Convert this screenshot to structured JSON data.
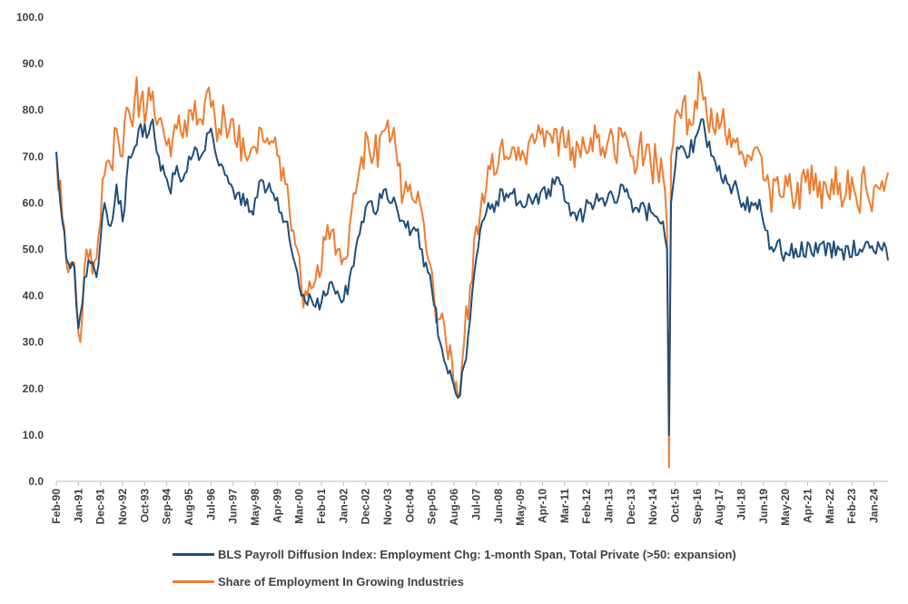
{
  "colors": {
    "diffusion": "#1f4e79",
    "share": "#ed7d31",
    "axis": "#bfbfbf",
    "text": "#404040"
  },
  "chart_data": {
    "type": "line",
    "title": "",
    "xlabel": "",
    "ylabel": "",
    "ylim": [
      0,
      100
    ],
    "yticks": [
      "0.0",
      "10.0",
      "20.0",
      "30.0",
      "40.0",
      "50.0",
      "60.0",
      "70.0",
      "80.0",
      "90.0",
      "100.0"
    ],
    "x_start": "Feb-90",
    "x_end": "Aug-24",
    "xtick_labels": [
      "Feb-90",
      "Jan-91",
      "Dec-91",
      "Nov-92",
      "Oct-93",
      "Sep-94",
      "Aug-95",
      "Jul-96",
      "Jun-97",
      "May-98",
      "Apr-99",
      "Mar-00",
      "Feb-01",
      "Jan-02",
      "Dec-02",
      "Nov-03",
      "Oct-04",
      "Sep-05",
      "Aug-06",
      "Jul-07",
      "Jun-08",
      "May-09",
      "Apr-10",
      "Mar-11",
      "Feb-12",
      "Jan-13",
      "Dec-13",
      "Nov-14",
      "Oct-15",
      "Sep-16",
      "Aug-17",
      "Jul-18",
      "Jun-19",
      "May-20",
      "Apr-21",
      "Mar-22",
      "Feb-23",
      "Jan-24"
    ],
    "legend_position": "bottom",
    "series": [
      {
        "name": "BLS Payroll Diffusion Index: Employment Chg: 1-month Span, Total Private (>50: expansion)",
        "color": "#1f4e79",
        "anchors": [
          [
            0,
            71
          ],
          [
            3,
            56
          ],
          [
            6,
            47
          ],
          [
            9,
            46
          ],
          [
            11,
            33
          ],
          [
            12,
            36
          ],
          [
            14,
            44
          ],
          [
            17,
            47
          ],
          [
            20,
            44
          ],
          [
            22,
            52
          ],
          [
            24,
            60
          ],
          [
            27,
            55
          ],
          [
            30,
            64
          ],
          [
            33,
            56
          ],
          [
            36,
            70
          ],
          [
            39,
            72
          ],
          [
            42,
            77
          ],
          [
            45,
            74
          ],
          [
            48,
            78
          ],
          [
            51,
            70
          ],
          [
            54,
            66
          ],
          [
            57,
            62
          ],
          [
            60,
            68
          ],
          [
            63,
            65
          ],
          [
            66,
            70
          ],
          [
            69,
            72
          ],
          [
            72,
            70
          ],
          [
            75,
            75
          ],
          [
            78,
            74
          ],
          [
            81,
            68
          ],
          [
            84,
            66
          ],
          [
            87,
            64
          ],
          [
            90,
            62
          ],
          [
            93,
            62
          ],
          [
            96,
            58
          ],
          [
            99,
            61
          ],
          [
            102,
            65
          ],
          [
            105,
            63
          ],
          [
            108,
            62
          ],
          [
            111,
            58
          ],
          [
            114,
            56
          ],
          [
            117,
            50
          ],
          [
            120,
            45
          ],
          [
            122,
            40
          ],
          [
            125,
            38
          ],
          [
            128,
            38
          ],
          [
            131,
            37
          ],
          [
            134,
            40
          ],
          [
            137,
            43
          ],
          [
            140,
            41
          ],
          [
            143,
            39
          ],
          [
            146,
            44
          ],
          [
            149,
            50
          ],
          [
            152,
            56
          ],
          [
            155,
            60
          ],
          [
            158,
            58
          ],
          [
            161,
            62
          ],
          [
            164,
            63
          ],
          [
            167,
            60
          ],
          [
            170,
            58
          ],
          [
            173,
            56
          ],
          [
            176,
            53
          ],
          [
            179,
            54
          ],
          [
            182,
            50
          ],
          [
            185,
            45
          ],
          [
            188,
            38
          ],
          [
            191,
            30
          ],
          [
            194,
            25
          ],
          [
            197,
            22
          ],
          [
            200,
            18
          ],
          [
            203,
            25
          ],
          [
            206,
            35
          ],
          [
            209,
            48
          ],
          [
            212,
            56
          ],
          [
            215,
            60
          ],
          [
            218,
            58
          ],
          [
            221,
            63
          ],
          [
            224,
            62
          ],
          [
            227,
            62
          ],
          [
            230,
            60
          ],
          [
            233,
            59
          ],
          [
            236,
            61
          ],
          [
            239,
            62
          ],
          [
            242,
            63
          ],
          [
            245,
            63
          ],
          [
            248,
            64
          ],
          [
            251,
            64
          ],
          [
            254,
            60
          ],
          [
            257,
            58
          ],
          [
            260,
            58
          ],
          [
            263,
            58
          ],
          [
            266,
            60
          ],
          [
            269,
            62
          ],
          [
            272,
            61
          ],
          [
            275,
            62
          ],
          [
            278,
            60
          ],
          [
            281,
            64
          ],
          [
            284,
            63
          ],
          [
            287,
            58
          ],
          [
            290,
            58
          ],
          [
            293,
            59
          ],
          [
            296,
            58
          ],
          [
            299,
            57
          ],
          [
            302,
            56
          ],
          [
            304,
            50
          ],
          [
            305,
            10
          ],
          [
            306,
            60
          ],
          [
            309,
            72
          ],
          [
            312,
            72
          ],
          [
            315,
            70
          ],
          [
            318,
            74
          ],
          [
            321,
            78
          ],
          [
            324,
            72
          ],
          [
            327,
            70
          ],
          [
            330,
            68
          ],
          [
            333,
            66
          ],
          [
            336,
            62
          ],
          [
            339,
            63
          ],
          [
            342,
            60
          ],
          [
            345,
            58
          ],
          [
            348,
            60
          ],
          [
            351,
            58
          ],
          [
            354,
            54
          ],
          [
            355,
            50
          ]
        ],
        "wiggle": 2.6
      },
      {
        "name": "Share of Employment In Growing Industries",
        "color": "#ed7d31",
        "anchors": [
          [
            0,
            71
          ],
          [
            3,
            57
          ],
          [
            6,
            45
          ],
          [
            9,
            47
          ],
          [
            11,
            32
          ],
          [
            12,
            30
          ],
          [
            14,
            46
          ],
          [
            17,
            50
          ],
          [
            20,
            48
          ],
          [
            22,
            56
          ],
          [
            24,
            66
          ],
          [
            27,
            68
          ],
          [
            30,
            76
          ],
          [
            33,
            70
          ],
          [
            36,
            80
          ],
          [
            39,
            82
          ],
          [
            42,
            82
          ],
          [
            45,
            80
          ],
          [
            48,
            84
          ],
          [
            51,
            78
          ],
          [
            54,
            74
          ],
          [
            57,
            70
          ],
          [
            60,
            76
          ],
          [
            63,
            74
          ],
          [
            66,
            80
          ],
          [
            69,
            82
          ],
          [
            72,
            78
          ],
          [
            75,
            84
          ],
          [
            78,
            82
          ],
          [
            81,
            76
          ],
          [
            84,
            78
          ],
          [
            87,
            78
          ],
          [
            90,
            72
          ],
          [
            93,
            74
          ],
          [
            96,
            70
          ],
          [
            99,
            72
          ],
          [
            102,
            76
          ],
          [
            105,
            74
          ],
          [
            108,
            73
          ],
          [
            111,
            70
          ],
          [
            114,
            64
          ],
          [
            117,
            54
          ],
          [
            120,
            50
          ],
          [
            122,
            42
          ],
          [
            125,
            40
          ],
          [
            128,
            42
          ],
          [
            131,
            44
          ],
          [
            134,
            52
          ],
          [
            137,
            54
          ],
          [
            140,
            50
          ],
          [
            143,
            48
          ],
          [
            146,
            55
          ],
          [
            149,
            62
          ],
          [
            152,
            70
          ],
          [
            155,
            74
          ],
          [
            158,
            70
          ],
          [
            161,
            74
          ],
          [
            164,
            76
          ],
          [
            167,
            74
          ],
          [
            170,
            68
          ],
          [
            173,
            62
          ],
          [
            176,
            64
          ],
          [
            179,
            60
          ],
          [
            182,
            58
          ],
          [
            185,
            48
          ],
          [
            188,
            40
          ],
          [
            191,
            35
          ],
          [
            194,
            30
          ],
          [
            197,
            26
          ],
          [
            200,
            18
          ],
          [
            203,
            30
          ],
          [
            206,
            42
          ],
          [
            209,
            55
          ],
          [
            212,
            62
          ],
          [
            215,
            68
          ],
          [
            218,
            66
          ],
          [
            221,
            72
          ],
          [
            224,
            70
          ],
          [
            227,
            72
          ],
          [
            230,
            72
          ],
          [
            233,
            70
          ],
          [
            236,
            74
          ],
          [
            239,
            74
          ],
          [
            242,
            76
          ],
          [
            245,
            75
          ],
          [
            248,
            76
          ],
          [
            251,
            75
          ],
          [
            254,
            72
          ],
          [
            257,
            72
          ],
          [
            260,
            72
          ],
          [
            263,
            72
          ],
          [
            266,
            74
          ],
          [
            269,
            74
          ],
          [
            272,
            72
          ],
          [
            275,
            74
          ],
          [
            278,
            70
          ],
          [
            281,
            76
          ],
          [
            284,
            74
          ],
          [
            287,
            70
          ],
          [
            290,
            72
          ],
          [
            293,
            70
          ],
          [
            296,
            68
          ],
          [
            299,
            68
          ],
          [
            302,
            66
          ],
          [
            304,
            55
          ],
          [
            305,
            3
          ],
          [
            306,
            70
          ],
          [
            309,
            80
          ],
          [
            312,
            82
          ],
          [
            315,
            78
          ],
          [
            318,
            82
          ],
          [
            321,
            86
          ],
          [
            324,
            78
          ],
          [
            327,
            76
          ],
          [
            330,
            76
          ],
          [
            333,
            75
          ],
          [
            336,
            72
          ],
          [
            339,
            74
          ],
          [
            342,
            70
          ],
          [
            345,
            70
          ],
          [
            348,
            72
          ],
          [
            351,
            70
          ],
          [
            354,
            66
          ],
          [
            355,
            63
          ]
        ],
        "wiggle": 5.2
      }
    ]
  }
}
